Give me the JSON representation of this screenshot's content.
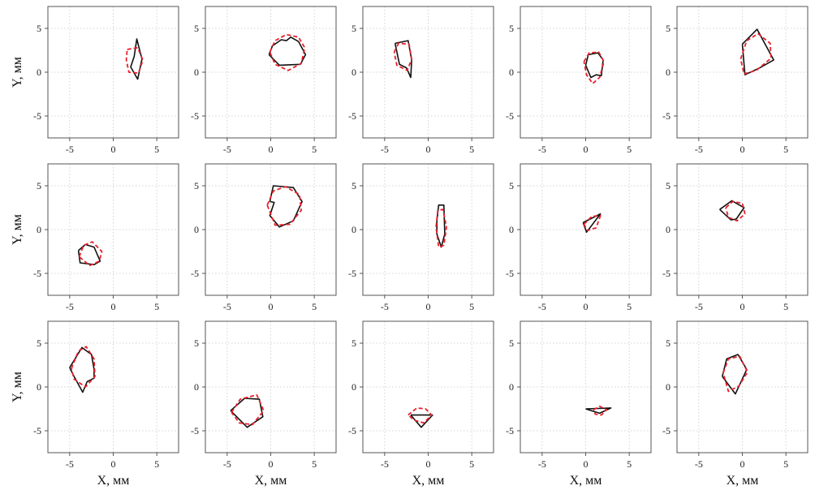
{
  "chart_data": {
    "type": "scatter",
    "layout_rows": 3,
    "layout_cols": 5,
    "xlim": [
      -7.5,
      7.5
    ],
    "ylim": [
      -7.5,
      7.5
    ],
    "xticks": [
      -5,
      0,
      5
    ],
    "yticks": [
      5,
      0,
      -5
    ],
    "xtick_labels": [
      "-5",
      "0",
      "5"
    ],
    "ytick_labels": [
      "5",
      "0",
      "-5"
    ],
    "xlabel": "X, мм",
    "ylabel": "Y, мм",
    "grid": true,
    "colors": {
      "outline": "#111111",
      "fit": "#e8202a"
    },
    "panels": [
      {
        "outline": [
          [
            2.4,
            1.8
          ],
          [
            2.7,
            3.8
          ],
          [
            3.3,
            1.5
          ],
          [
            2.8,
            -0.8
          ],
          [
            2.0,
            0.6
          ],
          [
            2.4,
            1.8
          ]
        ],
        "fit": [
          [
            1.6,
            2.6
          ],
          [
            2.8,
            2.8
          ],
          [
            3.4,
            1.4
          ],
          [
            2.9,
            -0.1
          ],
          [
            1.8,
            0.0
          ],
          [
            1.5,
            1.4
          ],
          [
            1.6,
            2.6
          ]
        ]
      },
      {
        "outline": [
          [
            -0.2,
            2.0
          ],
          [
            0.2,
            3.0
          ],
          [
            1.2,
            3.7
          ],
          [
            1.8,
            3.6
          ],
          [
            2.3,
            4.0
          ],
          [
            3.2,
            3.5
          ],
          [
            4.0,
            2.0
          ],
          [
            3.4,
            0.9
          ],
          [
            1.0,
            0.8
          ],
          [
            -0.2,
            2.0
          ]
        ],
        "fit": [
          [
            -0.1,
            2.3
          ],
          [
            0.5,
            3.6
          ],
          [
            1.8,
            4.3
          ],
          [
            3.2,
            4.0
          ],
          [
            3.9,
            2.8
          ],
          [
            3.5,
            1.0
          ],
          [
            2.0,
            0.2
          ],
          [
            0.5,
            0.9
          ],
          [
            -0.1,
            2.3
          ]
        ]
      },
      {
        "outline": [
          [
            -3.8,
            3.3
          ],
          [
            -2.3,
            3.6
          ],
          [
            -1.9,
            1.4
          ],
          [
            -2.0,
            -0.6
          ],
          [
            -2.5,
            0.5
          ],
          [
            -3.3,
            0.9
          ],
          [
            -3.8,
            3.3
          ]
        ],
        "fit": [
          [
            -3.9,
            2.3
          ],
          [
            -3.4,
            3.3
          ],
          [
            -2.2,
            3.2
          ],
          [
            -1.9,
            1.5
          ],
          [
            -2.4,
            0.2
          ],
          [
            -3.6,
            0.8
          ],
          [
            -3.9,
            2.3
          ]
        ]
      },
      {
        "outline": [
          [
            0.0,
            0.8
          ],
          [
            0.3,
            2.0
          ],
          [
            1.4,
            2.2
          ],
          [
            2.0,
            1.4
          ],
          [
            1.8,
            -0.4
          ],
          [
            1.2,
            -0.3
          ],
          [
            0.6,
            -0.6
          ],
          [
            0.0,
            0.8
          ]
        ],
        "fit": [
          [
            -0.2,
            1.2
          ],
          [
            0.4,
            2.2
          ],
          [
            1.5,
            2.3
          ],
          [
            2.1,
            1.2
          ],
          [
            1.6,
            -0.6
          ],
          [
            0.8,
            -1.3
          ],
          [
            0.1,
            -0.3
          ],
          [
            -0.2,
            1.2
          ]
        ]
      },
      {
        "outline": [
          [
            0.0,
            3.2
          ],
          [
            1.7,
            4.9
          ],
          [
            3.6,
            1.4
          ],
          [
            2.0,
            0.5
          ],
          [
            0.3,
            -0.3
          ],
          [
            0.0,
            3.2
          ]
        ],
        "fit": [
          [
            -0.2,
            1.5
          ],
          [
            0.5,
            3.6
          ],
          [
            1.8,
            4.4
          ],
          [
            3.2,
            3.3
          ],
          [
            3.3,
            1.6
          ],
          [
            1.6,
            0.2
          ],
          [
            0.2,
            -0.2
          ],
          [
            -0.2,
            1.5
          ]
        ]
      },
      {
        "outline": [
          [
            -4.0,
            -2.4
          ],
          [
            -3.2,
            -1.7
          ],
          [
            -2.2,
            -2.0
          ],
          [
            -1.5,
            -3.6
          ],
          [
            -2.2,
            -4.0
          ],
          [
            -3.8,
            -3.8
          ],
          [
            -4.0,
            -2.4
          ]
        ],
        "fit": [
          [
            -3.9,
            -3.1
          ],
          [
            -3.4,
            -1.8
          ],
          [
            -2.4,
            -1.4
          ],
          [
            -1.3,
            -2.5
          ],
          [
            -1.6,
            -3.6
          ],
          [
            -2.7,
            -4.1
          ],
          [
            -3.9,
            -3.1
          ]
        ]
      },
      {
        "outline": [
          [
            -0.1,
            3.2
          ],
          [
            0.3,
            5.0
          ],
          [
            2.6,
            4.8
          ],
          [
            3.6,
            3.2
          ],
          [
            2.6,
            1.0
          ],
          [
            1.0,
            0.3
          ],
          [
            -0.1,
            1.6
          ],
          [
            0.4,
            3.1
          ],
          [
            -0.1,
            3.2
          ]
        ],
        "fit": [
          [
            -0.4,
            2.8
          ],
          [
            0.3,
            4.4
          ],
          [
            1.7,
            4.9
          ],
          [
            3.3,
            4.0
          ],
          [
            3.5,
            2.2
          ],
          [
            2.2,
            0.6
          ],
          [
            0.5,
            0.5
          ],
          [
            -0.4,
            2.8
          ]
        ]
      },
      {
        "outline": [
          [
            1.0,
            1.0
          ],
          [
            1.2,
            2.8
          ],
          [
            1.8,
            2.8
          ],
          [
            1.9,
            -0.5
          ],
          [
            1.5,
            -2.0
          ],
          [
            1.0,
            -0.5
          ],
          [
            1.0,
            1.0
          ]
        ],
        "fit": [
          [
            0.9,
            0.3
          ],
          [
            1.1,
            2.2
          ],
          [
            1.7,
            2.3
          ],
          [
            2.1,
            0.3
          ],
          [
            1.8,
            -1.8
          ],
          [
            1.2,
            -2.0
          ],
          [
            0.9,
            0.3
          ]
        ]
      },
      {
        "outline": [
          [
            -0.3,
            0.8
          ],
          [
            1.7,
            1.8
          ],
          [
            0.1,
            -0.3
          ],
          [
            -0.3,
            0.8
          ]
        ],
        "fit": [
          [
            -0.2,
            0.6
          ],
          [
            0.7,
            1.5
          ],
          [
            1.7,
            1.6
          ],
          [
            1.2,
            0.2
          ],
          [
            0.2,
            -0.1
          ],
          [
            -0.2,
            0.6
          ]
        ]
      },
      {
        "outline": [
          [
            -2.6,
            2.3
          ],
          [
            -1.2,
            3.3
          ],
          [
            0.2,
            2.5
          ],
          [
            -0.7,
            1.2
          ],
          [
            -1.3,
            1.1
          ],
          [
            -2.6,
            2.3
          ]
        ],
        "fit": [
          [
            -1.9,
            2.5
          ],
          [
            -1.1,
            3.2
          ],
          [
            0.0,
            3.0
          ],
          [
            0.3,
            1.8
          ],
          [
            -0.6,
            1.0
          ],
          [
            -1.6,
            1.4
          ],
          [
            -1.9,
            2.5
          ]
        ]
      },
      {
        "outline": [
          [
            -5.0,
            2.2
          ],
          [
            -3.6,
            4.5
          ],
          [
            -2.5,
            3.7
          ],
          [
            -2.2,
            2.0
          ],
          [
            -2.2,
            1.0
          ],
          [
            -3.0,
            0.6
          ],
          [
            -3.5,
            -0.6
          ],
          [
            -4.5,
            1.2
          ],
          [
            -5.0,
            2.2
          ]
        ],
        "fit": [
          [
            -4.8,
            2.1
          ],
          [
            -4.0,
            4.1
          ],
          [
            -3.1,
            4.6
          ],
          [
            -2.2,
            3.2
          ],
          [
            -2.1,
            1.2
          ],
          [
            -3.2,
            0.0
          ],
          [
            -4.5,
            0.9
          ],
          [
            -4.8,
            2.1
          ]
        ]
      },
      {
        "outline": [
          [
            -4.6,
            -2.7
          ],
          [
            -3.0,
            -1.3
          ],
          [
            -1.3,
            -1.4
          ],
          [
            -0.9,
            -3.4
          ],
          [
            -2.7,
            -4.6
          ],
          [
            -4.6,
            -2.7
          ]
        ],
        "fit": [
          [
            -4.5,
            -2.9
          ],
          [
            -3.5,
            -1.4
          ],
          [
            -1.6,
            -0.9
          ],
          [
            -0.8,
            -2.7
          ],
          [
            -2.1,
            -4.3
          ],
          [
            -3.6,
            -4.1
          ],
          [
            -4.5,
            -2.9
          ]
        ]
      },
      {
        "outline": [
          [
            -2.0,
            -3.2
          ],
          [
            0.5,
            -3.2
          ],
          [
            -0.8,
            -4.6
          ],
          [
            -2.0,
            -3.2
          ]
        ],
        "fit": [
          [
            -2.3,
            -3.2
          ],
          [
            -1.3,
            -2.4
          ],
          [
            -0.3,
            -2.5
          ],
          [
            0.4,
            -3.2
          ],
          [
            -0.5,
            -4.1
          ],
          [
            -1.6,
            -3.8
          ],
          [
            -2.3,
            -3.2
          ]
        ]
      },
      {
        "outline": [
          [
            0.0,
            -2.5
          ],
          [
            2.9,
            -2.4
          ],
          [
            1.6,
            -3.0
          ],
          [
            0.0,
            -2.5
          ]
        ],
        "fit": [
          [
            0.9,
            -2.6
          ],
          [
            1.6,
            -2.2
          ],
          [
            2.4,
            -2.6
          ],
          [
            1.8,
            -3.2
          ],
          [
            1.1,
            -3.1
          ],
          [
            0.9,
            -2.6
          ]
        ]
      },
      {
        "outline": [
          [
            -2.3,
            1.2
          ],
          [
            -1.8,
            3.2
          ],
          [
            -0.5,
            3.7
          ],
          [
            0.5,
            2.0
          ],
          [
            -0.8,
            -0.8
          ],
          [
            -2.3,
            1.2
          ]
        ],
        "fit": [
          [
            -2.2,
            1.6
          ],
          [
            -1.6,
            3.2
          ],
          [
            -0.3,
            3.5
          ],
          [
            0.6,
            1.7
          ],
          [
            -0.4,
            0.1
          ],
          [
            -1.6,
            -0.5
          ],
          [
            -2.2,
            1.6
          ]
        ]
      }
    ]
  }
}
